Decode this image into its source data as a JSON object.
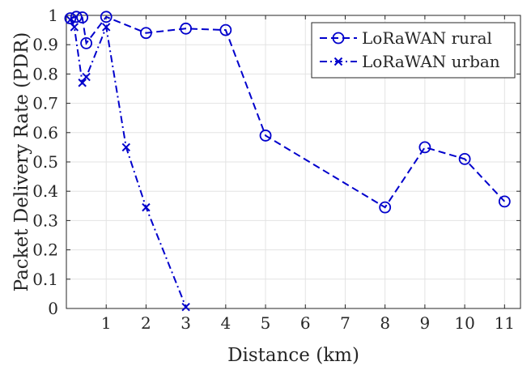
{
  "chart_data": {
    "type": "line",
    "title": "",
    "xlabel": "Distance (km)",
    "ylabel": "Packet Delivery Rate (PDR)",
    "xlim": [
      0,
      11.4
    ],
    "ylim": [
      0,
      1
    ],
    "xticks": [
      1,
      2,
      3,
      4,
      5,
      6,
      7,
      8,
      9,
      10,
      11
    ],
    "yticks": [
      0,
      0.1,
      0.2,
      0.3,
      0.4,
      0.5,
      0.6,
      0.7,
      0.8,
      0.9,
      1
    ],
    "ytick_labels": [
      "0",
      "0.1",
      "0.2",
      "0.3",
      "0.4",
      "0.5",
      "0.6",
      "0.7",
      "0.8",
      "0.9",
      "1"
    ],
    "grid": true,
    "legend_position": "top-right",
    "series": [
      {
        "name": "LoRaWAN rural",
        "line_style": "dashed",
        "marker": "circle",
        "color": "#0000cc",
        "x": [
          0.1,
          0.25,
          0.4,
          0.5,
          1.0,
          2.0,
          3.0,
          4.0,
          5.0,
          8.0,
          9.0,
          10.0,
          11.0
        ],
        "y": [
          0.99,
          0.995,
          0.993,
          0.905,
          0.995,
          0.94,
          0.955,
          0.95,
          0.59,
          0.345,
          0.55,
          0.51,
          0.365
        ]
      },
      {
        "name": "LoRaWAN urban",
        "line_style": "dashdot",
        "marker": "x",
        "color": "#0000cc",
        "x": [
          0.1,
          0.2,
          0.4,
          0.5,
          1.0,
          1.5,
          2.0,
          3.0
        ],
        "y": [
          0.985,
          0.96,
          0.77,
          0.79,
          0.96,
          0.55,
          0.345,
          0.005
        ]
      }
    ]
  }
}
